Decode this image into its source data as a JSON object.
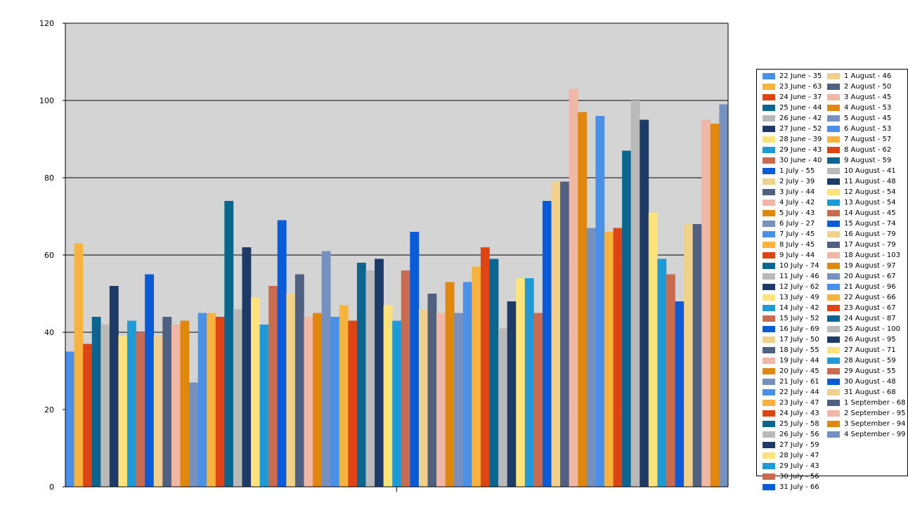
{
  "chart_data": {
    "type": "bar",
    "ylim": [
      0,
      120
    ],
    "yticks": [
      "0",
      "20",
      "40",
      "60",
      "80",
      "100",
      "120"
    ],
    "grid": true,
    "legend_position": "right",
    "plot_background": "#d4d4d4",
    "colors": [
      "#4a90e8",
      "#f7b33d",
      "#df4514",
      "#0a668e",
      "#b9b9b9",
      "#1e3a66",
      "#fde37a",
      "#1e9ad6",
      "#c96b4e",
      "#0a5bd8",
      "#f0d08a",
      "#4f6080",
      "#f0b6a6",
      "#e0870f",
      "#7690c0"
    ],
    "categories": [
      "22 June",
      "23 June",
      "24 June",
      "25 June",
      "26 June",
      "27 June",
      "28 June",
      "29 June",
      "30 June",
      "1 July",
      "2 July",
      "3 July",
      "4 July",
      "5 July",
      "6 July",
      "7 July",
      "8 July",
      "9 July",
      "10 July",
      "11 July",
      "12 July",
      "13 July",
      "14 July",
      "15 July",
      "16 July",
      "17 July",
      "18 July",
      "19 July",
      "20 July",
      "21 July",
      "22 July",
      "23 July",
      "24 July",
      "25 July",
      "26 July",
      "27 July",
      "28 July",
      "29 July",
      "30 July",
      "31 July",
      "1 August",
      "2 August",
      "3 August",
      "4 August",
      "5 August",
      "6 August",
      "7 August",
      "8 August",
      "9 August",
      "10 August",
      "11 August",
      "12 August",
      "13 August",
      "14 August",
      "15 August",
      "16 August",
      "17 August",
      "18 August",
      "19 August",
      "20 August",
      "21 August",
      "22 August",
      "23 August",
      "24 August",
      "25 August",
      "26 August",
      "27 August",
      "28 August",
      "29 August",
      "30 August",
      "31 August",
      "1 September",
      "2 September",
      "3 September",
      "4 September"
    ],
    "values": [
      35,
      63,
      37,
      44,
      42,
      52,
      39,
      43,
      40,
      55,
      39,
      44,
      42,
      43,
      27,
      45,
      45,
      44,
      74,
      46,
      62,
      49,
      42,
      52,
      69,
      50,
      55,
      44,
      45,
      61,
      44,
      47,
      43,
      58,
      56,
      59,
      47,
      43,
      56,
      66,
      46,
      50,
      45,
      53,
      45,
      53,
      57,
      62,
      59,
      41,
      48,
      54,
      54,
      45,
      74,
      79,
      79,
      103,
      97,
      67,
      96,
      66,
      67,
      87,
      100,
      95,
      71,
      59,
      55,
      48,
      68,
      68,
      95,
      94,
      99
    ],
    "legend": [
      "22 June - 35",
      "23 June - 63",
      "24 June - 37",
      "25 June - 44",
      "26 June - 42",
      "27 June - 52",
      "28 June - 39",
      "29 June - 43",
      "30 June - 40",
      "1 July - 55",
      "2 July - 39",
      "3 July - 44",
      "4 July - 42",
      "5 July - 43",
      "6 July - 27",
      "7 July - 45",
      "8 July - 45",
      "9 July - 44",
      "10 July - 74",
      "11 July - 46",
      "12 July - 62",
      "13 July - 49",
      "14 July - 42",
      "15 July - 52",
      "16 July - 69",
      "17 July - 50",
      "18 July - 55",
      "19 July - 44",
      "20 July - 45",
      "21 July - 61",
      "22 July - 44",
      "23 July - 47",
      "24 July - 43",
      "25 July - 58",
      "26 July - 56",
      "27 July - 59",
      "28 July - 47",
      "29 July - 43",
      "30 July - 56",
      "31 July - 66",
      "1 August - 46",
      "2 August - 50",
      "3 August - 45",
      "4 August - 53",
      "5 August - 45",
      "6 August - 53",
      "7 August - 57",
      "8 August - 62",
      "9 August - 59",
      "10 August - 41",
      "11 August - 48",
      "12 August - 54",
      "13 August - 54",
      "14 August - 45",
      "15 August - 74",
      "16 August - 79",
      "17 August - 79",
      "18 August - 103",
      "19 August - 97",
      "20 August - 67",
      "21 August - 96",
      "22 August - 66",
      "23 August - 67",
      "24 August - 87",
      "25 August - 100",
      "26 August - 95",
      "27 August - 71",
      "28 August - 59",
      "29 August - 55",
      "30 August - 48",
      "31 August - 68",
      "1 September - 68",
      "2 September - 95",
      "3 September - 94",
      "4 September - 99"
    ]
  }
}
